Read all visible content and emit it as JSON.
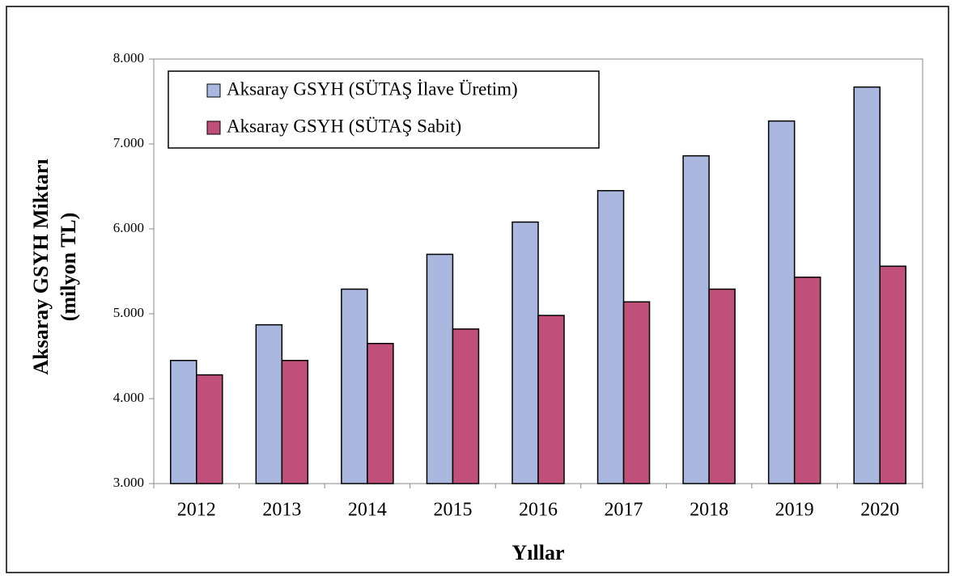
{
  "chart_data": {
    "type": "bar",
    "xlabel": "Yıllar",
    "ylabel": [
      "Aksaray GSYH Miktarı",
      "(milyon TL)"
    ],
    "categories": [
      "2012",
      "2013",
      "2014",
      "2015",
      "2016",
      "2017",
      "2018",
      "2019",
      "2020"
    ],
    "series": [
      {
        "name": "Aksaray GSYH (SÜTAŞ İlave Üretim)",
        "color": "#aab8e0",
        "values": [
          4450,
          4870,
          5290,
          5700,
          6080,
          6450,
          6860,
          7270,
          7670
        ]
      },
      {
        "name": "Aksaray GSYH (SÜTAŞ Sabit)",
        "color": "#c0507a",
        "values": [
          4280,
          4450,
          4650,
          4820,
          4980,
          5140,
          5290,
          5430,
          5560
        ]
      }
    ],
    "ylim": [
      3000,
      8000
    ],
    "yticks": [
      {
        "value": 3000,
        "label": "3.000"
      },
      {
        "value": 4000,
        "label": "4.000"
      },
      {
        "value": 5000,
        "label": "5.000"
      },
      {
        "value": 6000,
        "label": "6.000"
      },
      {
        "value": 7000,
        "label": "7.000"
      },
      {
        "value": 8000,
        "label": "8.000"
      }
    ],
    "grid": false,
    "legend": "upper left"
  }
}
